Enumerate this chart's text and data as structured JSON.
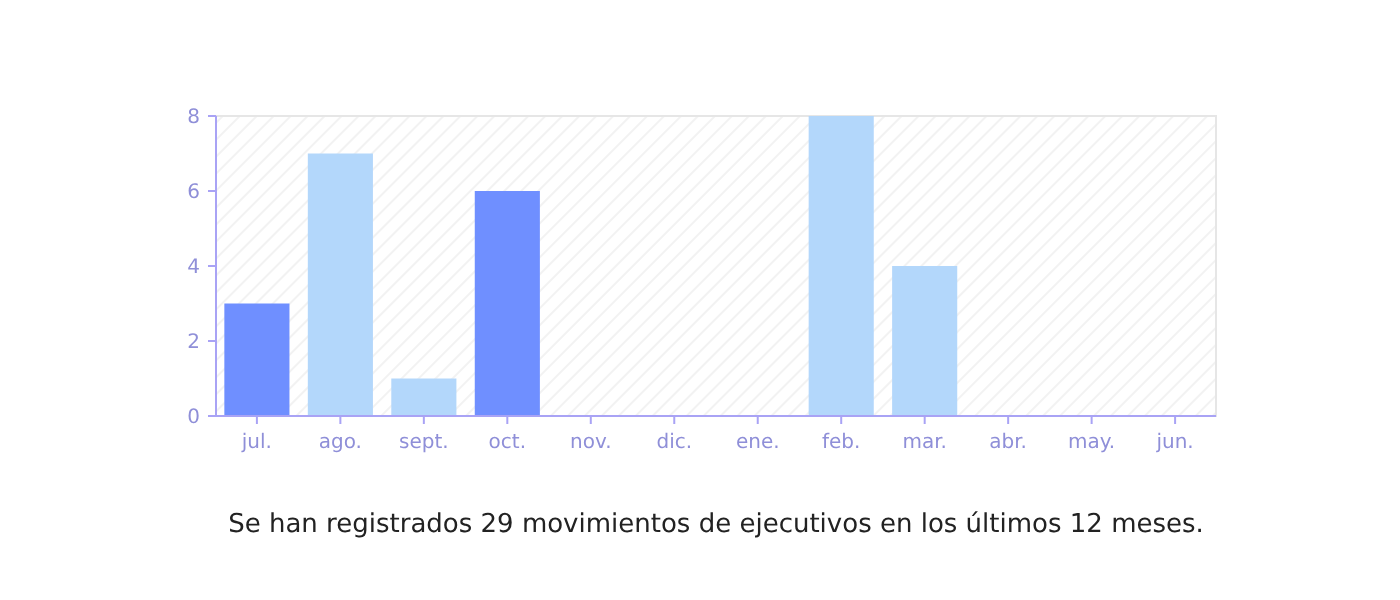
{
  "chart_data": {
    "type": "bar",
    "categories": [
      "jul.",
      "ago.",
      "sept.",
      "oct.",
      "nov.",
      "dic.",
      "ene.",
      "feb.",
      "mar.",
      "abr.",
      "may.",
      "jun."
    ],
    "values": [
      3,
      7,
      1,
      6,
      0,
      0,
      0,
      8,
      4,
      0,
      0,
      0
    ],
    "colors": [
      "#6f8fff",
      "#b3d7fb",
      "#b3d7fb",
      "#6f8fff",
      "#b3d7fb",
      "#b3d7fb",
      "#b3d7fb",
      "#b3d7fb",
      "#b3d7fb",
      "#b3d7fb",
      "#b3d7fb",
      "#b3d7fb"
    ],
    "ylim": [
      0,
      8
    ],
    "yticks": [
      0,
      2,
      4,
      6,
      8
    ],
    "grid": false,
    "annotations": [
      "Se han registrados 29 movimientos de ejecutivos en los últimos 12 meses."
    ]
  }
}
